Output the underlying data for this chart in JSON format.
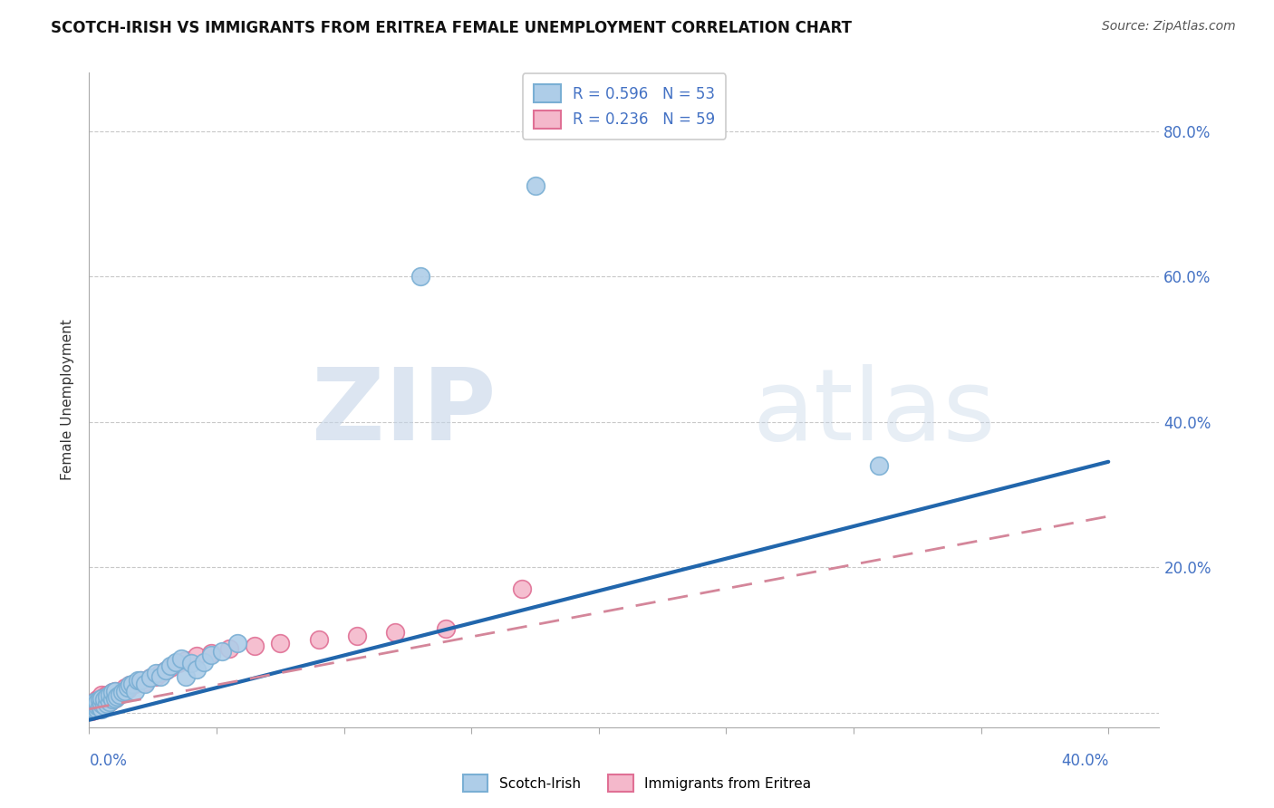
{
  "title": "SCOTCH-IRISH VS IMMIGRANTS FROM ERITREA FEMALE UNEMPLOYMENT CORRELATION CHART",
  "source": "Source: ZipAtlas.com",
  "ylabel": "Female Unemployment",
  "y_ticks": [
    0.0,
    0.2,
    0.4,
    0.6,
    0.8
  ],
  "y_tick_labels": [
    "",
    "20.0%",
    "40.0%",
    "60.0%",
    "80.0%"
  ],
  "x_range": [
    0.0,
    0.42
  ],
  "y_range": [
    -0.02,
    0.88
  ],
  "series1_label": "Scotch-Irish",
  "series2_label": "Immigrants from Eritrea",
  "series1_color": "#aecde8",
  "series2_color": "#f4b8cb",
  "series1_edge": "#7aafd4",
  "series2_edge": "#e07095",
  "R1": 0.596,
  "N1": 53,
  "R2": 0.236,
  "N2": 59,
  "legend_text_color": "#4472c4",
  "trend1_color": "#2166ac",
  "trend2_color": "#d4869a",
  "grid_color": "#c8c8c8",
  "watermark_zip": "ZIP",
  "watermark_atlas": "atlas",
  "background_color": "#ffffff",
  "title_fontsize": 12,
  "source_fontsize": 10,
  "scotch_irish_x": [
    0.001,
    0.001,
    0.001,
    0.002,
    0.002,
    0.002,
    0.002,
    0.003,
    0.003,
    0.003,
    0.004,
    0.004,
    0.005,
    0.005,
    0.005,
    0.006,
    0.006,
    0.007,
    0.007,
    0.008,
    0.008,
    0.009,
    0.009,
    0.01,
    0.01,
    0.011,
    0.012,
    0.013,
    0.014,
    0.015,
    0.016,
    0.017,
    0.018,
    0.019,
    0.02,
    0.022,
    0.024,
    0.026,
    0.028,
    0.03,
    0.032,
    0.034,
    0.036,
    0.038,
    0.04,
    0.042,
    0.045,
    0.048,
    0.052,
    0.058,
    0.13,
    0.175,
    0.31
  ],
  "scotch_irish_y": [
    0.005,
    0.008,
    0.01,
    0.005,
    0.01,
    0.012,
    0.015,
    0.005,
    0.01,
    0.015,
    0.008,
    0.018,
    0.005,
    0.012,
    0.02,
    0.01,
    0.018,
    0.012,
    0.022,
    0.015,
    0.025,
    0.018,
    0.028,
    0.02,
    0.03,
    0.022,
    0.025,
    0.028,
    0.03,
    0.035,
    0.038,
    0.04,
    0.03,
    0.045,
    0.045,
    0.04,
    0.048,
    0.055,
    0.05,
    0.058,
    0.065,
    0.07,
    0.075,
    0.05,
    0.068,
    0.06,
    0.07,
    0.08,
    0.085,
    0.095,
    0.6,
    0.725,
    0.34
  ],
  "eritrea_x": [
    0.001,
    0.001,
    0.001,
    0.001,
    0.001,
    0.002,
    0.002,
    0.002,
    0.002,
    0.003,
    0.003,
    0.003,
    0.003,
    0.004,
    0.004,
    0.004,
    0.004,
    0.005,
    0.005,
    0.005,
    0.005,
    0.006,
    0.006,
    0.006,
    0.007,
    0.007,
    0.007,
    0.008,
    0.008,
    0.009,
    0.009,
    0.01,
    0.01,
    0.011,
    0.012,
    0.013,
    0.014,
    0.015,
    0.016,
    0.018,
    0.02,
    0.022,
    0.024,
    0.026,
    0.028,
    0.03,
    0.032,
    0.035,
    0.038,
    0.042,
    0.048,
    0.055,
    0.065,
    0.075,
    0.09,
    0.105,
    0.12,
    0.14,
    0.17
  ],
  "eritrea_y": [
    0.002,
    0.005,
    0.008,
    0.01,
    0.012,
    0.003,
    0.006,
    0.008,
    0.015,
    0.005,
    0.008,
    0.012,
    0.018,
    0.005,
    0.01,
    0.015,
    0.02,
    0.008,
    0.012,
    0.018,
    0.025,
    0.01,
    0.015,
    0.022,
    0.012,
    0.018,
    0.025,
    0.015,
    0.022,
    0.018,
    0.028,
    0.02,
    0.03,
    0.025,
    0.028,
    0.03,
    0.035,
    0.032,
    0.038,
    0.04,
    0.045,
    0.042,
    0.048,
    0.05,
    0.055,
    0.058,
    0.062,
    0.068,
    0.072,
    0.078,
    0.082,
    0.088,
    0.092,
    0.095,
    0.1,
    0.105,
    0.11,
    0.115,
    0.17
  ],
  "trend1_x0": 0.0,
  "trend1_y0": -0.01,
  "trend1_x1": 0.4,
  "trend1_y1": 0.345,
  "trend2_x0": 0.0,
  "trend2_y0": 0.005,
  "trend2_x1": 0.4,
  "trend2_y1": 0.27
}
